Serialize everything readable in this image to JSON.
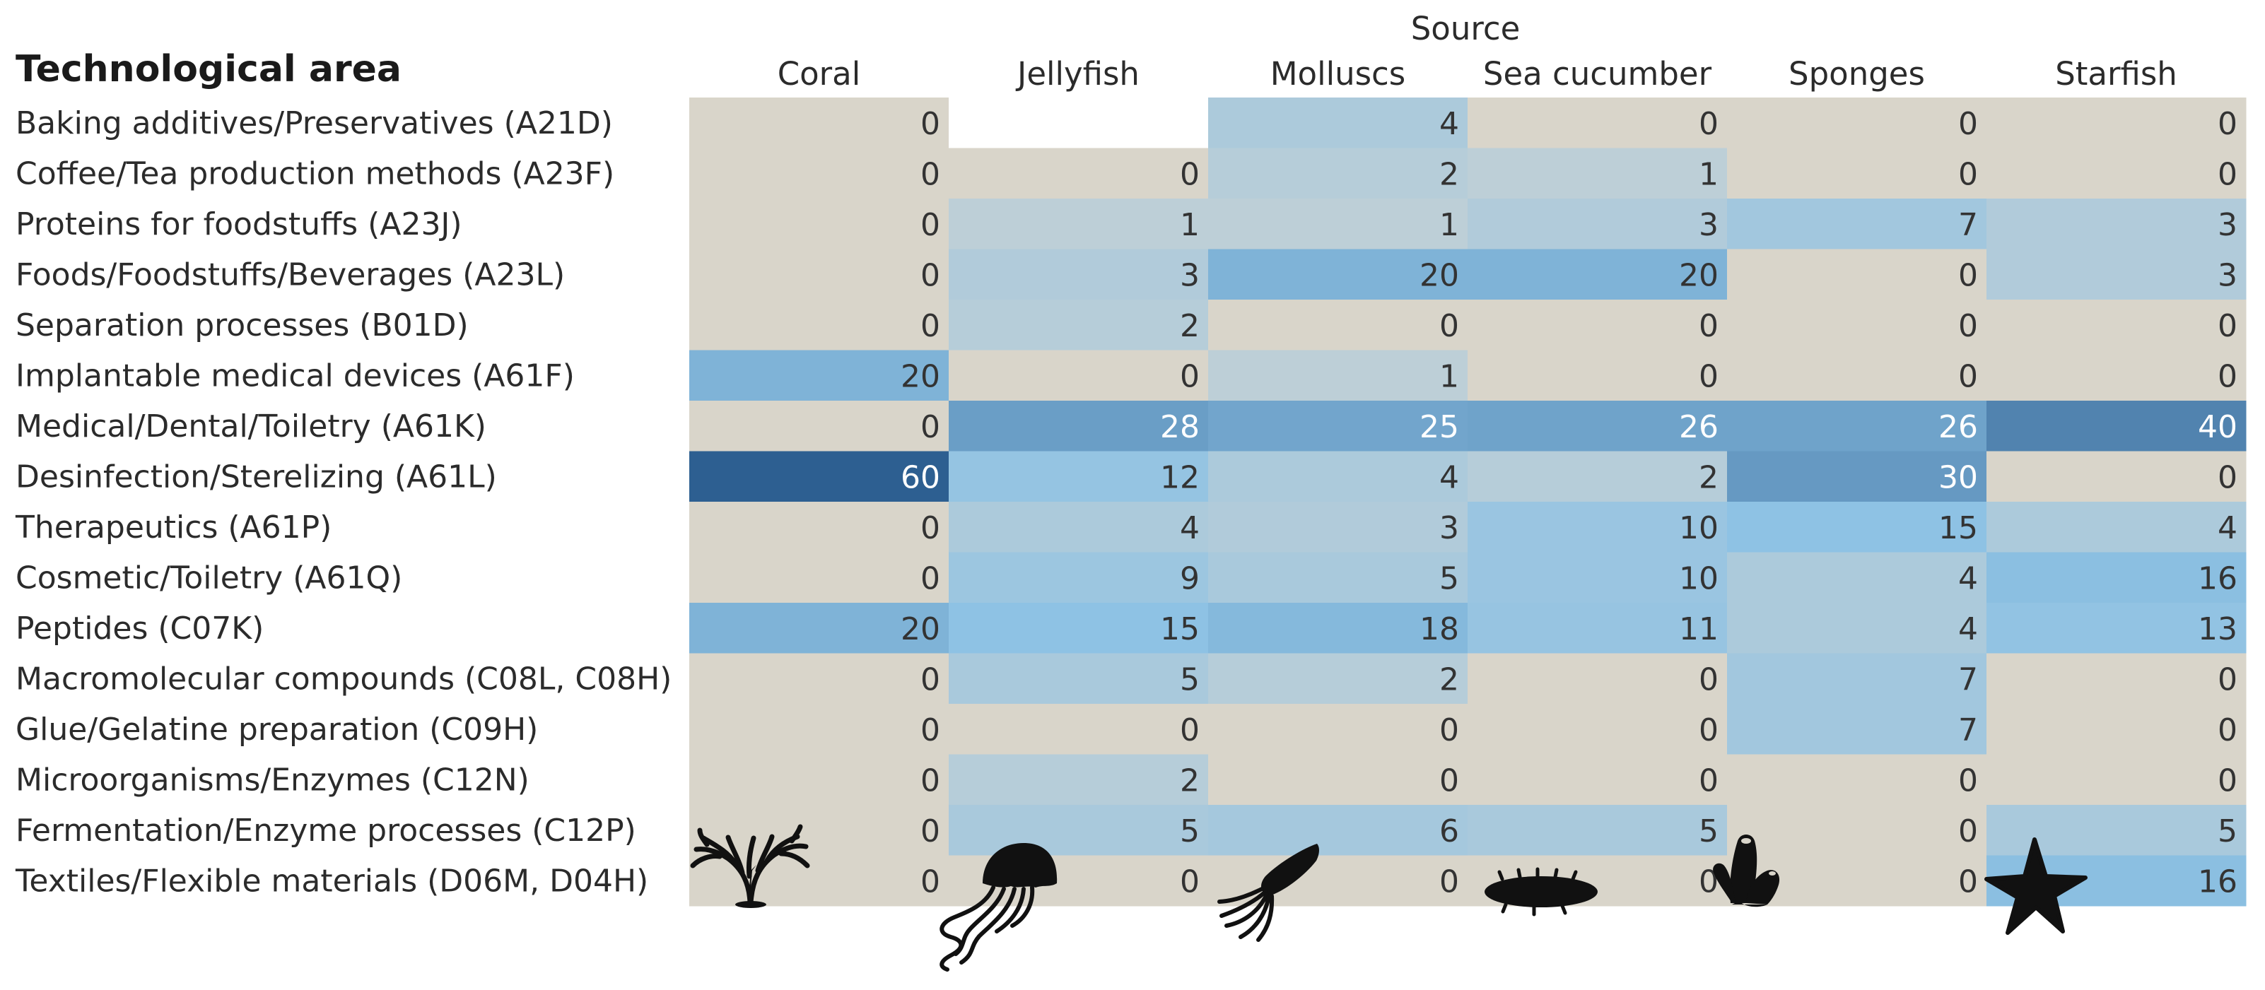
{
  "chart_data": {
    "type": "heatmap",
    "row_header": "Technological area",
    "column_header": "Source",
    "columns": [
      "Coral",
      "Jellyfish",
      "Molluscs",
      "Sea cucumber",
      "Sponges",
      "Starfish"
    ],
    "rows": [
      "Baking additives/Preservatives (A21D)",
      "Coffee/Tea production methods (A23F)",
      "Proteins for foodstuffs (A23J)",
      "Foods/Foodstuffs/Beverages (A23L)",
      "Separation processes (B01D)",
      "Implantable medical devices (A61F)",
      "Medical/Dental/Toiletry (A61K)",
      "Desinfection/Sterelizing (A61L)",
      "Therapeutics (A61P)",
      "Cosmetic/Toiletry (A61Q)",
      "Peptides (C07K)",
      "Macromolecular compounds (C08L, C08H)",
      "Glue/Gelatine preparation (C09H)",
      "Microorganisms/Enzymes (C12N)",
      "Fermentation/Enzyme processes (C12P)",
      "Textiles/Flexible materials (D06M, D04H)"
    ],
    "values": [
      [
        0,
        null,
        4,
        0,
        0,
        0
      ],
      [
        0,
        0,
        2,
        1,
        0,
        0
      ],
      [
        0,
        1,
        1,
        3,
        7,
        3
      ],
      [
        0,
        3,
        20,
        20,
        0,
        3
      ],
      [
        0,
        2,
        0,
        0,
        0,
        0
      ],
      [
        20,
        0,
        1,
        0,
        0,
        0
      ],
      [
        0,
        28,
        25,
        26,
        26,
        40
      ],
      [
        60,
        12,
        4,
        2,
        30,
        0
      ],
      [
        0,
        4,
        3,
        10,
        15,
        4
      ],
      [
        0,
        9,
        5,
        10,
        4,
        16
      ],
      [
        20,
        15,
        18,
        11,
        4,
        13
      ],
      [
        0,
        5,
        2,
        0,
        7,
        0
      ],
      [
        0,
        0,
        0,
        0,
        7,
        0
      ],
      [
        0,
        2,
        0,
        0,
        0,
        0
      ],
      [
        0,
        5,
        6,
        5,
        0,
        5
      ],
      [
        0,
        0,
        0,
        0,
        0,
        16
      ]
    ],
    "zero_color": "#d9d5ca",
    "blank_color": "#ffffff",
    "scale_colors": [
      "#cdd3d2",
      "#8ec2e4",
      "#2d5f91"
    ],
    "text_color_dark": "#333333",
    "text_color_light": "#ffffff",
    "column_icons": [
      "coral-icon",
      "jellyfish-icon",
      "squid-icon",
      "sea-cucumber-icon",
      "sponge-icon",
      "starfish-icon"
    ],
    "icon_color": "#111111"
  }
}
